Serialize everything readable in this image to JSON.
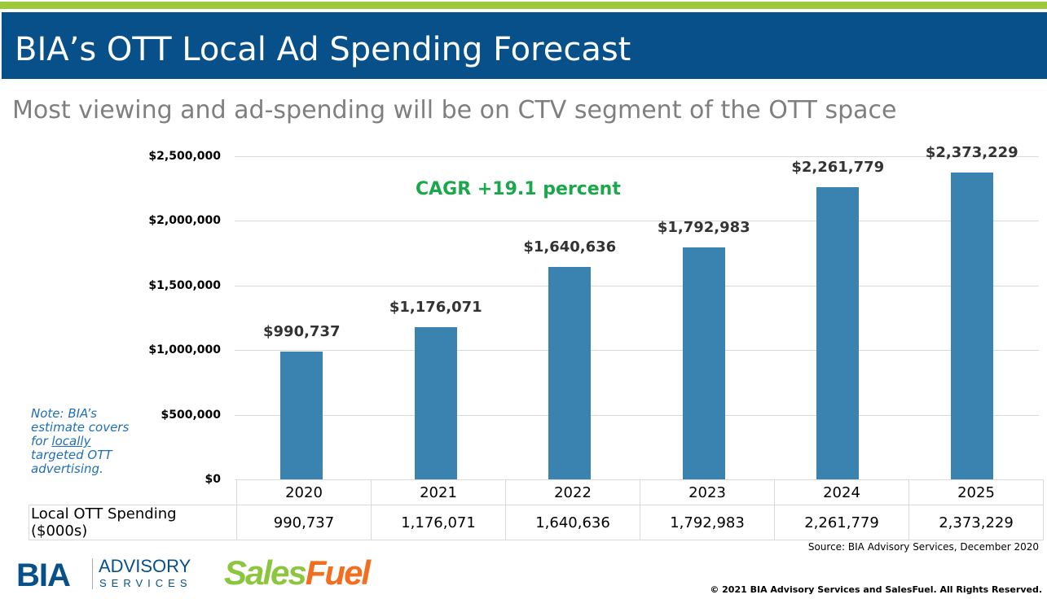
{
  "header": {
    "title": "BIA’s OTT Local Ad Spending Forecast",
    "subtitle": "Most viewing and ad-spending will be on CTV segment of the OTT space"
  },
  "colors": {
    "header_bg": "#07508a",
    "accent_green_bar": "#9dc93b",
    "bar": "#3a83b1",
    "cagr": "#1aa84a",
    "note": "#1f6fb8"
  },
  "chart_data": {
    "type": "bar",
    "categories": [
      "2020",
      "2021",
      "2022",
      "2023",
      "2024",
      "2025"
    ],
    "values": [
      990737,
      1176071,
      1640636,
      1792983,
      2261779,
      2373229
    ],
    "data_labels": [
      "$990,737",
      "$1,176,071",
      "$1,640,636",
      "$1,792,983",
      "$2,261,779",
      "$2,373,229"
    ],
    "yticks": [
      "$0",
      "$500,000",
      "$1,000,000",
      "$1,500,000",
      "$2,000,000",
      "$2,500,000"
    ],
    "ylim": [
      0,
      2500000
    ],
    "grid": true,
    "annotation": "CAGR +19.1 percent",
    "table": {
      "row_label": "Local OTT Spending ($000s)",
      "values": [
        "990,737",
        "1,176,071",
        "1,640,636",
        "1,792,983",
        "2,261,779",
        "2,373,229"
      ]
    }
  },
  "note": {
    "prefix": "Note: BIA’s estimate covers for ",
    "underlined": "locally",
    "suffix": " targeted OTT advertising."
  },
  "source": "Source: BIA Advisory Services, December 2020",
  "copyright": "© 2021 BIA Advisory Services and SalesFuel. All Rights Reserved.",
  "logos": {
    "bia": "BIA",
    "bia_line1": "ADVISORY",
    "bia_line2": "SERVICES",
    "salesfuel_a": "Sales",
    "salesfuel_b": "Fuel"
  }
}
